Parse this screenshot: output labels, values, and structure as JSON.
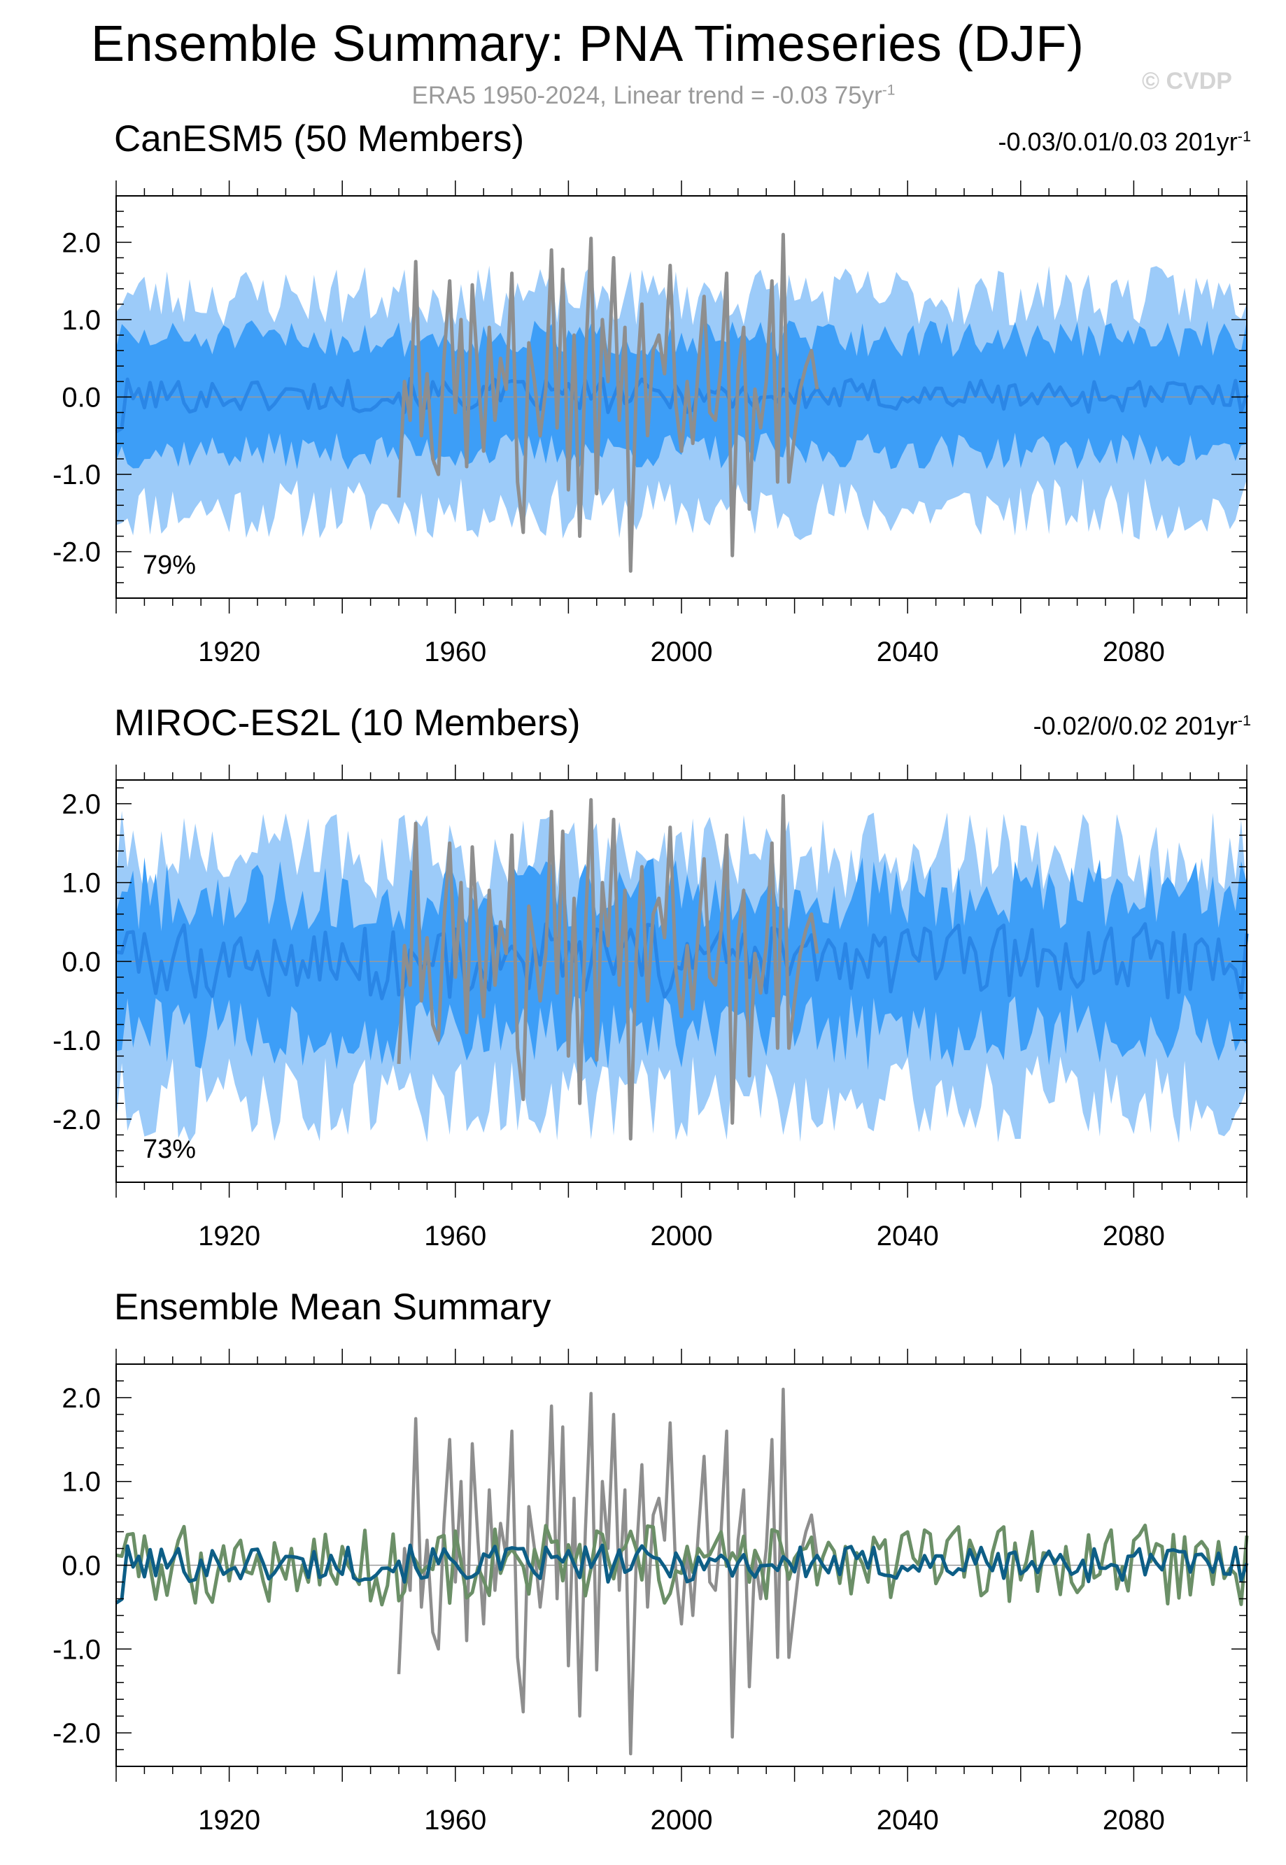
{
  "header": {
    "title": "Ensemble Summary: PNA Timeseries (DJF)",
    "subtitle": "ERA5 1950-2024, Linear trend = -0.03 75yr",
    "subtitle_sup": "-1",
    "watermark": "© CVDP"
  },
  "colors": {
    "canesm5_title": "#1a6e96",
    "miroc_title": "#6b8f67",
    "spread_outer": "#9ccbf9",
    "spread_inner": "#3d9ef7",
    "member_mean": "#2a86e6",
    "obs": "#8e8e8e",
    "canesm5_mean_line": "#0d5e86",
    "miroc_mean_line": "#6b8f67",
    "zero_line": "#999999"
  },
  "panels": [
    {
      "title": "CanESM5 (50 Members)",
      "trend": "-0.03/0.01/0.03 201yr",
      "trend_sup": "-1",
      "percent": "79%",
      "title_color": "#1a6e96"
    },
    {
      "title": "MIROC-ES2L (10 Members)",
      "trend": "-0.02/0/0.02 201yr",
      "trend_sup": "-1",
      "percent": "73%",
      "title_color": "#6b8f67"
    },
    {
      "title": "Ensemble Mean Summary",
      "trend": "",
      "trend_sup": "",
      "percent": "",
      "title_color": "#000000"
    }
  ],
  "chart_data": [
    {
      "type": "area",
      "title": "CanESM5 (50 Members)",
      "xlim": [
        1900,
        2100
      ],
      "ylim": [
        -2.6,
        2.6
      ],
      "x_ticks": [
        1920,
        1960,
        2000,
        2040,
        2080
      ],
      "y_ticks": [
        -2.0,
        -1.0,
        0.0,
        1.0,
        2.0
      ],
      "y_tick_labels": [
        "-2.0",
        "-1.0",
        "0.0",
        "1.0",
        "2.0"
      ],
      "series": [
        {
          "role": "outer-spread",
          "lower_mean": -1.45,
          "upper_mean": 1.3,
          "variability": 0.25
        },
        {
          "role": "inner-spread",
          "lower_mean": -0.7,
          "upper_mean": 0.75,
          "variability": 0.15
        },
        {
          "role": "ensemble-mean",
          "mean": 0.02,
          "variability": 0.1,
          "start_value": -0.45
        }
      ],
      "obs_x_range": [
        1950,
        2024
      ],
      "annotation": "79%"
    },
    {
      "type": "area",
      "title": "MIROC-ES2L (10 Members)",
      "xlim": [
        1900,
        2100
      ],
      "ylim": [
        -2.8,
        2.3
      ],
      "x_ticks": [
        1920,
        1960,
        2000,
        2040,
        2080
      ],
      "y_ticks": [
        -2.0,
        -1.0,
        0.0,
        1.0,
        2.0
      ],
      "y_tick_labels": [
        "-2.0",
        "-1.0",
        "0.0",
        "1.0",
        "2.0"
      ],
      "series": [
        {
          "role": "outer-spread",
          "lower_mean": -1.75,
          "upper_mean": 1.35,
          "variability": 0.35
        },
        {
          "role": "inner-spread",
          "lower_mean": -0.9,
          "upper_mean": 0.85,
          "variability": 0.3
        },
        {
          "role": "ensemble-mean",
          "mean": 0.0,
          "variability": 0.22,
          "start_value": 0.12
        }
      ],
      "obs_x_range": [
        1950,
        2024
      ],
      "annotation": "73%"
    },
    {
      "type": "line",
      "title": "Ensemble Mean Summary",
      "xlim": [
        1900,
        2100
      ],
      "ylim": [
        -2.4,
        2.4
      ],
      "x_ticks": [
        1920,
        1960,
        2000,
        2040,
        2080
      ],
      "y_ticks": [
        -2.0,
        -1.0,
        0.0,
        1.0,
        2.0
      ],
      "y_tick_labels": [
        "-2.0",
        "-1.0",
        "0.0",
        "1.0",
        "2.0"
      ],
      "series": [
        {
          "role": "canesm5-mean",
          "mean": 0.02,
          "variability": 0.1,
          "start_value": -0.45
        },
        {
          "role": "miroc-mean",
          "mean": 0.0,
          "variability": 0.22,
          "start_value": 0.12
        },
        {
          "role": "era5-obs"
        }
      ],
      "obs_x_range": [
        1950,
        2024
      ]
    }
  ],
  "obs_era5": {
    "x": [
      1950,
      1951,
      1952,
      1953,
      1954,
      1955,
      1956,
      1957,
      1958,
      1959,
      1960,
      1961,
      1962,
      1963,
      1964,
      1965,
      1966,
      1967,
      1968,
      1969,
      1970,
      1971,
      1972,
      1973,
      1974,
      1975,
      1976,
      1977,
      1978,
      1979,
      1980,
      1981,
      1982,
      1983,
      1984,
      1985,
      1986,
      1987,
      1988,
      1989,
      1990,
      1991,
      1992,
      1993,
      1994,
      1995,
      1996,
      1997,
      1998,
      1999,
      2000,
      2001,
      2002,
      2003,
      2004,
      2005,
      2006,
      2007,
      2008,
      2009,
      2010,
      2011,
      2012,
      2013,
      2014,
      2015,
      2016,
      2017,
      2018,
      2019,
      2020,
      2021,
      2022,
      2023,
      2024
    ],
    "y": [
      -1.3,
      0.2,
      -0.3,
      1.75,
      -0.5,
      0.3,
      -0.8,
      -1.0,
      0.5,
      1.5,
      -0.2,
      1.0,
      -0.9,
      1.45,
      0.3,
      -0.7,
      0.9,
      -0.3,
      0.5,
      0.1,
      1.6,
      -1.1,
      -1.75,
      0.7,
      0.2,
      -0.5,
      0.1,
      1.9,
      -0.4,
      1.65,
      -1.2,
      0.8,
      -1.8,
      0.4,
      2.05,
      -1.25,
      1.0,
      0.2,
      1.8,
      -0.3,
      0.9,
      -2.25,
      0.1,
      1.2,
      -0.5,
      0.6,
      0.8,
      0.3,
      1.7,
      -0.1,
      -0.7,
      0.2,
      -0.6,
      0.4,
      1.3,
      -0.2,
      -0.3,
      0.4,
      1.6,
      -2.05,
      0.3,
      0.9,
      -1.45,
      0.1,
      -0.4,
      0.2,
      1.5,
      -1.1,
      2.1,
      -1.1,
      -0.5,
      0.1,
      0.4,
      0.6,
      0.1
    ]
  }
}
